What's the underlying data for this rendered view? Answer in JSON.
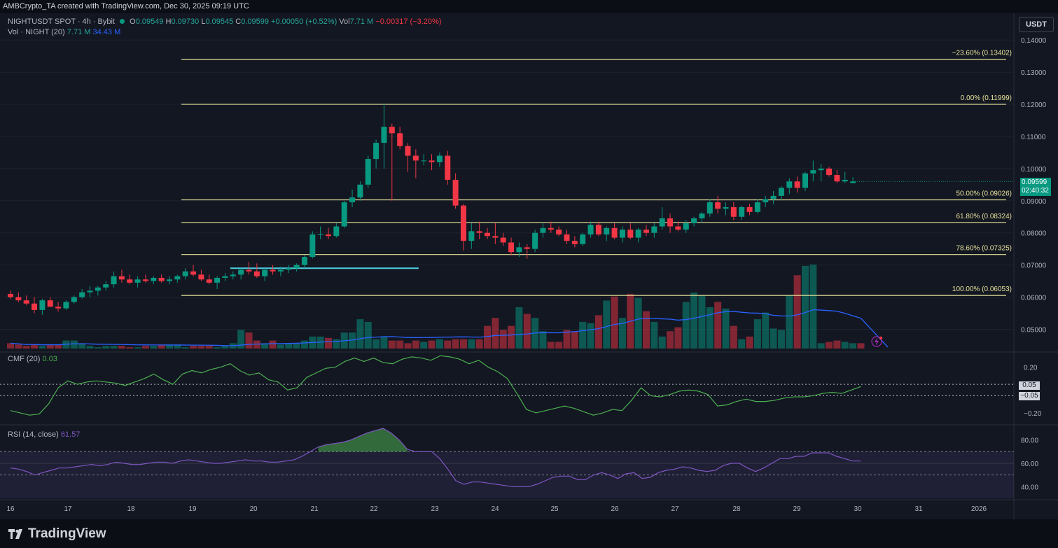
{
  "header": {
    "credit": "AMBCrypto_TA created with TradingView.com, Dec 30, 2025 09:19 UTC"
  },
  "legend": {
    "symbol": "NIGHTUSDT SPOT · 4h · Bybit",
    "o_label": "O",
    "o_value": "0.09549",
    "h_label": "H",
    "h_value": "0.09730",
    "l_label": "L",
    "l_value": "0.09545",
    "c_label": "C",
    "c_value": "0.09599",
    "change": "+0.00050 (+0.52%)",
    "vol_label": "Vol",
    "vol_value": "7.71 M",
    "vol_change": "−0.00317 (−3.20%)",
    "vol_ind": "Vol · NIGHT (20)",
    "vol_ind_v1": "7.71 M",
    "vol_ind_v2": "34.43 M",
    "cmf": "CMF (20)",
    "cmf_value": "0.03",
    "rsi": "RSI (14, close)",
    "rsi_value": "61.57"
  },
  "currency_button": "USDT",
  "price_tag": {
    "price": "0.09599",
    "countdown": "02:40:32"
  },
  "footer": {
    "brand": "TradingView"
  },
  "colors": {
    "up": "#089981",
    "down": "#f23645",
    "fib": "#e6e29a",
    "volMA": "#2962ff",
    "cmf": "#4caf50",
    "rsi": "#7e57c2",
    "bg": "#131722"
  },
  "chart_data": [
    {
      "type": "candlestick",
      "interval": "4h",
      "ylim": [
        0.044,
        0.142
      ],
      "y_ticks": [
        "0.05000",
        "0.06000",
        "0.07000",
        "0.08000",
        "0.09000",
        "0.10000",
        "0.11000",
        "0.12000",
        "0.13000",
        "0.14000"
      ],
      "x_ticks": [
        "16",
        "17",
        "18",
        "19",
        "20",
        "21",
        "22",
        "23",
        "24",
        "25",
        "26",
        "27",
        "28",
        "29",
        "30",
        "31",
        "2026"
      ],
      "candles": [
        [
          0.061,
          0.062,
          0.0595,
          0.06
        ],
        [
          0.06,
          0.0615,
          0.0585,
          0.059
        ],
        [
          0.059,
          0.0605,
          0.0575,
          0.058
        ],
        [
          0.058,
          0.06,
          0.055,
          0.056
        ],
        [
          0.056,
          0.0595,
          0.0545,
          0.059
        ],
        [
          0.059,
          0.06,
          0.057,
          0.057
        ],
        [
          0.057,
          0.0585,
          0.0555,
          0.0565
        ],
        [
          0.0565,
          0.059,
          0.056,
          0.0585
        ],
        [
          0.0585,
          0.0605,
          0.058,
          0.06
        ],
        [
          0.06,
          0.0625,
          0.0595,
          0.0615
        ],
        [
          0.0615,
          0.0635,
          0.06,
          0.062
        ],
        [
          0.062,
          0.0635,
          0.0605,
          0.063
        ],
        [
          0.063,
          0.065,
          0.062,
          0.064
        ],
        [
          0.064,
          0.068,
          0.063,
          0.0665
        ],
        [
          0.0665,
          0.0685,
          0.0645,
          0.0655
        ],
        [
          0.0655,
          0.067,
          0.064,
          0.0645
        ],
        [
          0.0645,
          0.0665,
          0.063,
          0.0655
        ],
        [
          0.0655,
          0.067,
          0.0645,
          0.065
        ],
        [
          0.065,
          0.0665,
          0.064,
          0.066
        ],
        [
          0.066,
          0.067,
          0.0645,
          0.065
        ],
        [
          0.065,
          0.0665,
          0.064,
          0.0655
        ],
        [
          0.0655,
          0.067,
          0.0645,
          0.0665
        ],
        [
          0.0665,
          0.069,
          0.0655,
          0.068
        ],
        [
          0.068,
          0.07,
          0.0665,
          0.067
        ],
        [
          0.067,
          0.0685,
          0.065,
          0.0655
        ],
        [
          0.0655,
          0.067,
          0.064,
          0.0645
        ],
        [
          0.0645,
          0.0665,
          0.0625,
          0.066
        ],
        [
          0.066,
          0.0675,
          0.065,
          0.0665
        ],
        [
          0.0665,
          0.068,
          0.0655,
          0.067
        ],
        [
          0.067,
          0.069,
          0.0655,
          0.0685
        ],
        [
          0.0685,
          0.071,
          0.067,
          0.068
        ],
        [
          0.068,
          0.0705,
          0.066,
          0.0665
        ],
        [
          0.0665,
          0.069,
          0.065,
          0.0685
        ],
        [
          0.0685,
          0.07,
          0.067,
          0.068
        ],
        [
          0.068,
          0.0695,
          0.0665,
          0.0685
        ],
        [
          0.0685,
          0.07,
          0.0675,
          0.069
        ],
        [
          0.069,
          0.0705,
          0.068,
          0.07
        ],
        [
          0.07,
          0.073,
          0.069,
          0.0725
        ],
        [
          0.0725,
          0.0805,
          0.072,
          0.0795
        ],
        [
          0.0795,
          0.082,
          0.078,
          0.0795
        ],
        [
          0.0795,
          0.0815,
          0.078,
          0.079
        ],
        [
          0.079,
          0.083,
          0.0785,
          0.082
        ],
        [
          0.082,
          0.09,
          0.0815,
          0.0895
        ],
        [
          0.0895,
          0.0935,
          0.088,
          0.091
        ],
        [
          0.091,
          0.096,
          0.09,
          0.095
        ],
        [
          0.095,
          0.104,
          0.094,
          0.103
        ],
        [
          0.103,
          0.109,
          0.1,
          0.108
        ],
        [
          0.108,
          0.12,
          0.1,
          0.113
        ],
        [
          0.113,
          0.114,
          0.09,
          0.111
        ],
        [
          0.111,
          0.113,
          0.106,
          0.107
        ],
        [
          0.107,
          0.108,
          0.099,
          0.104
        ],
        [
          0.104,
          0.106,
          0.097,
          0.1025
        ],
        [
          0.1025,
          0.1045,
          0.101,
          0.1025
        ],
        [
          0.1025,
          0.1045,
          0.0995,
          0.102
        ],
        [
          0.102,
          0.105,
          0.1005,
          0.104
        ],
        [
          0.104,
          0.1055,
          0.095,
          0.0965
        ],
        [
          0.0965,
          0.0985,
          0.0875,
          0.0885
        ],
        [
          0.0885,
          0.089,
          0.0745,
          0.0775
        ],
        [
          0.0775,
          0.083,
          0.075,
          0.0805
        ],
        [
          0.0805,
          0.0835,
          0.078,
          0.08
        ],
        [
          0.08,
          0.0815,
          0.078,
          0.079
        ],
        [
          0.079,
          0.083,
          0.0765,
          0.0785
        ],
        [
          0.0785,
          0.08,
          0.076,
          0.077
        ],
        [
          0.077,
          0.0785,
          0.073,
          0.074
        ],
        [
          0.074,
          0.077,
          0.0725,
          0.0755
        ],
        [
          0.0755,
          0.0765,
          0.072,
          0.075
        ],
        [
          0.075,
          0.081,
          0.074,
          0.08
        ],
        [
          0.08,
          0.083,
          0.0785,
          0.0815
        ],
        [
          0.0815,
          0.0835,
          0.08,
          0.081
        ],
        [
          0.081,
          0.082,
          0.079,
          0.0795
        ],
        [
          0.0795,
          0.081,
          0.0765,
          0.0775
        ],
        [
          0.0775,
          0.079,
          0.0755,
          0.0765
        ],
        [
          0.0765,
          0.08,
          0.076,
          0.0795
        ],
        [
          0.0795,
          0.0835,
          0.0785,
          0.0825
        ],
        [
          0.0825,
          0.0835,
          0.079,
          0.0795
        ],
        [
          0.0795,
          0.082,
          0.0775,
          0.0815
        ],
        [
          0.0815,
          0.083,
          0.078,
          0.0785
        ],
        [
          0.0785,
          0.082,
          0.077,
          0.081
        ],
        [
          0.081,
          0.083,
          0.078,
          0.0785
        ],
        [
          0.0785,
          0.0815,
          0.077,
          0.081
        ],
        [
          0.081,
          0.0825,
          0.079,
          0.08
        ],
        [
          0.08,
          0.083,
          0.0785,
          0.082
        ],
        [
          0.082,
          0.088,
          0.081,
          0.0845
        ],
        [
          0.0845,
          0.086,
          0.08,
          0.082
        ],
        [
          0.082,
          0.0835,
          0.0805,
          0.081
        ],
        [
          0.081,
          0.084,
          0.08,
          0.083
        ],
        [
          0.083,
          0.085,
          0.082,
          0.0845
        ],
        [
          0.0845,
          0.0865,
          0.083,
          0.086
        ],
        [
          0.086,
          0.0905,
          0.085,
          0.0895
        ],
        [
          0.0895,
          0.0915,
          0.086,
          0.0875
        ],
        [
          0.0875,
          0.0895,
          0.0855,
          0.088
        ],
        [
          0.088,
          0.0895,
          0.084,
          0.085
        ],
        [
          0.085,
          0.0885,
          0.084,
          0.088
        ],
        [
          0.088,
          0.089,
          0.0855,
          0.0865
        ],
        [
          0.0865,
          0.0905,
          0.086,
          0.0895
        ],
        [
          0.0895,
          0.0915,
          0.088,
          0.0905
        ],
        [
          0.0905,
          0.093,
          0.089,
          0.0915
        ],
        [
          0.0915,
          0.0945,
          0.09,
          0.094
        ],
        [
          0.094,
          0.097,
          0.092,
          0.096
        ],
        [
          0.096,
          0.0975,
          0.0925,
          0.094
        ],
        [
          0.094,
          0.099,
          0.093,
          0.0985
        ],
        [
          0.0985,
          0.1025,
          0.096,
          0.0995
        ],
        [
          0.0995,
          0.1015,
          0.096,
          0.1
        ],
        [
          0.1,
          0.1005,
          0.0975,
          0.098
        ],
        [
          0.098,
          0.0995,
          0.0955,
          0.096
        ],
        [
          0.096,
          0.099,
          0.0955,
          0.0965
        ],
        [
          0.0955,
          0.0973,
          0.0954,
          0.096
        ]
      ],
      "fib_levels": [
        {
          "label": "−23.60% (0.13402)",
          "price": 0.13402
        },
        {
          "label": "0.00% (0.11999)",
          "price": 0.11999
        },
        {
          "label": "50.00% (0.09026)",
          "price": 0.09026
        },
        {
          "label": "61.80% (0.08324)",
          "price": 0.08324
        },
        {
          "label": "78.60% (0.07325)",
          "price": 0.07325
        },
        {
          "label": "100.00% (0.06053)",
          "price": 0.06053
        }
      ],
      "resistance_line": {
        "price": 0.069,
        "from_candle": 28,
        "to_candle": 51
      }
    },
    {
      "type": "bar",
      "name": "Vol · NIGHT (20)",
      "values": [
        4,
        3,
        2,
        3,
        2,
        3,
        3,
        6,
        6,
        4,
        2,
        1,
        2,
        2,
        2,
        1,
        1,
        2,
        2,
        3,
        3,
        3,
        1,
        2,
        2,
        2,
        1,
        2,
        4,
        14,
        12,
        6,
        4,
        6,
        3,
        4,
        4,
        6,
        9,
        9,
        8,
        7,
        12,
        12,
        22,
        20,
        7,
        9,
        6,
        6,
        4,
        6,
        5,
        6,
        7,
        6,
        7,
        7,
        7,
        7,
        17,
        23,
        14,
        17,
        31,
        26,
        23,
        13,
        5,
        5,
        14,
        13,
        20,
        19,
        25,
        36,
        39,
        23,
        41,
        38,
        28,
        20,
        9,
        13,
        16,
        35,
        42,
        40,
        31,
        35,
        30,
        17,
        7,
        9,
        22,
        27,
        15,
        14,
        40,
        55,
        62,
        63,
        4,
        5,
        6,
        5,
        4,
        4
      ],
      "ma_visible": true
    },
    {
      "type": "line",
      "name": "CMF (20)",
      "ylim": [
        -0.28,
        0.32
      ],
      "y_ticks": [
        "0.20",
        "−0.20"
      ],
      "ref_lines": [
        0.05,
        -0.05
      ],
      "values": [
        -0.18,
        -0.2,
        -0.22,
        -0.21,
        -0.12,
        0.02,
        0.08,
        0.05,
        0.07,
        0.08,
        0.07,
        0.06,
        0.04,
        0.07,
        0.1,
        0.14,
        0.09,
        0.05,
        0.14,
        0.17,
        0.15,
        0.18,
        0.2,
        0.23,
        0.17,
        0.13,
        0.15,
        0.09,
        0.07,
        0.0,
        0.02,
        0.11,
        0.15,
        0.19,
        0.2,
        0.25,
        0.28,
        0.25,
        0.28,
        0.24,
        0.23,
        0.27,
        0.29,
        0.28,
        0.26,
        0.3,
        0.29,
        0.27,
        0.23,
        0.26,
        0.2,
        0.16,
        0.1,
        -0.03,
        -0.17,
        -0.2,
        -0.18,
        -0.16,
        -0.14,
        -0.16,
        -0.19,
        -0.22,
        -0.2,
        -0.17,
        -0.18,
        -0.09,
        0.02,
        -0.05,
        -0.06,
        -0.04,
        -0.01,
        0.0,
        -0.01,
        -0.04,
        -0.14,
        -0.13,
        -0.1,
        -0.08,
        -0.1,
        -0.1,
        -0.09,
        -0.07,
        -0.06,
        -0.06,
        -0.05,
        -0.03,
        -0.02,
        -0.03,
        0.0,
        0.03
      ],
      "x_start_candle": 0,
      "x_end_candle": 107
    },
    {
      "type": "line",
      "name": "RSI (14, close)",
      "ylim": [
        30,
        90
      ],
      "y_ticks": [
        "80.00",
        "60.00",
        "40.00"
      ],
      "bands": [
        70,
        50
      ],
      "values": [
        56,
        55,
        53,
        50,
        52,
        54,
        56,
        56,
        57,
        58,
        59,
        58,
        59,
        61,
        60,
        59,
        59,
        60,
        61,
        61,
        60,
        62,
        63,
        62,
        61,
        60,
        60,
        61,
        62,
        63,
        62,
        62,
        61,
        61,
        62,
        63,
        66,
        70,
        74,
        76,
        77,
        78,
        80,
        83,
        86,
        88,
        90,
        86,
        80,
        72,
        70,
        70,
        70,
        64,
        55,
        45,
        42,
        44,
        44,
        43,
        42,
        41,
        40,
        40,
        40,
        42,
        45,
        48,
        49,
        49,
        46,
        46,
        50,
        52,
        50,
        47,
        51,
        52,
        47,
        48,
        52,
        54,
        55,
        57,
        56,
        54,
        53,
        54,
        58,
        60,
        60,
        56,
        53,
        56,
        60,
        64,
        64,
        66,
        66,
        69,
        69,
        69,
        66,
        64,
        62,
        62
      ],
      "x_start_candle": 0,
      "x_end_candle": 107
    }
  ]
}
